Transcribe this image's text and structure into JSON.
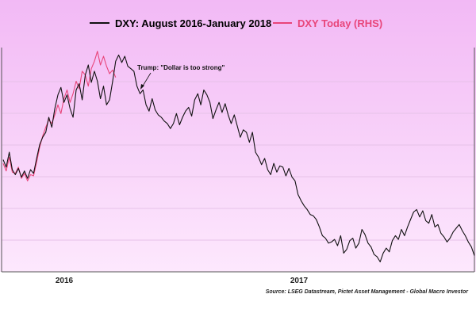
{
  "colors": {
    "bg_top": "#f2b9f5",
    "bg_bottom": "#fde8fd",
    "series_dxy": "#111111",
    "series_today": "#e8457a",
    "grid": "#e6c2e8"
  },
  "chart_data": {
    "type": "line",
    "grid": true,
    "legend_placement": "top",
    "y_ticks_shown": false,
    "x_ticks": [
      "2016",
      "2017"
    ],
    "annotation": "Trump: \"Dollar is too strong\"",
    "source": "Source: LSEG Datastream, Pictet Asset Management - Global Macro Investor",
    "series": [
      {
        "name": "DXY: August 2016-January 2018",
        "axis": "left",
        "values": [
          99.0,
          98.4,
          99.6,
          98.2,
          97.8,
          98.3,
          97.6,
          98.1,
          97.5,
          98.2,
          97.9,
          99.1,
          100.2,
          100.8,
          101.2,
          102.4,
          101.6,
          103.1,
          104.2,
          104.8,
          103.6,
          104.2,
          103.1,
          102.4,
          104.6,
          105.1,
          103.8,
          105.8,
          106.6,
          105.2,
          106.1,
          105.3,
          103.9,
          104.9,
          103.4,
          103.8,
          105.3,
          106.9,
          107.4,
          106.8,
          107.3,
          106.5,
          106.3,
          106.1,
          104.9,
          104.3,
          104.6,
          103.4,
          102.9,
          103.9,
          103.0,
          102.6,
          102.4,
          102.1,
          101.9,
          101.5,
          101.9,
          102.7,
          101.8,
          102.4,
          102.9,
          103.2,
          102.5,
          103.8,
          104.3,
          103.4,
          104.6,
          104.2,
          103.6,
          102.3,
          103.0,
          103.6,
          102.8,
          103.5,
          102.6,
          101.9,
          102.6,
          101.7,
          100.8,
          101.4,
          101.2,
          100.4,
          101.2,
          99.6,
          99.2,
          98.6,
          99.1,
          98.2,
          97.8,
          98.7,
          98.0,
          98.5,
          98.4,
          97.7,
          98.3,
          97.6,
          97.3,
          96.2,
          95.7,
          95.3,
          95.0,
          94.6,
          94.5,
          94.2,
          93.6,
          92.9,
          92.7,
          92.3,
          92.4,
          92.6,
          92.1,
          92.9,
          91.5,
          91.8,
          92.5,
          92.7,
          91.9,
          92.3,
          93.4,
          93.0,
          92.3,
          92.0,
          91.4,
          91.2,
          90.8,
          91.5,
          91.9,
          91.6,
          92.5,
          92.9,
          92.6,
          93.4,
          92.9,
          93.6,
          94.2,
          94.8,
          95.0,
          94.4,
          94.9,
          94.1,
          93.9,
          94.6,
          93.6,
          93.8,
          93.1,
          92.8,
          92.4,
          92.7,
          93.2,
          93.5,
          93.8,
          93.3,
          92.9,
          92.4,
          92.0,
          91.3
        ]
      },
      {
        "name": "DXY Today (RHS)",
        "axis": "right",
        "values": [
          98.7,
          98.1,
          99.2,
          98.0,
          97.9,
          98.4,
          97.5,
          97.9,
          97.3,
          97.8,
          97.7,
          98.8,
          100.0,
          100.9,
          101.6,
          102.2,
          101.9,
          102.6,
          103.4,
          102.7,
          103.9,
          104.6,
          103.6,
          104.3,
          105.3,
          104.7,
          106.1,
          105.8,
          104.9,
          106.3,
          106.9,
          107.7,
          106.6,
          107.3,
          106.5,
          105.9,
          106.2,
          105.6
        ]
      }
    ]
  }
}
